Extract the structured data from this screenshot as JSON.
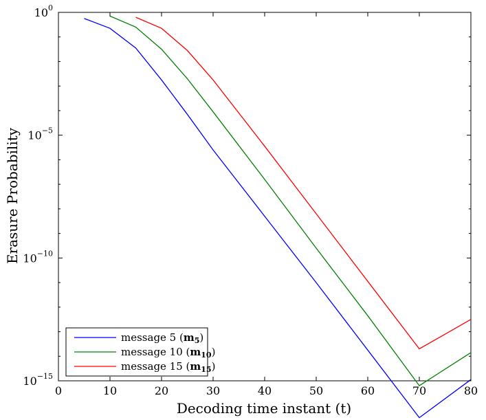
{
  "chart_data": {
    "type": "line",
    "xlabel": "Decoding time instant (t)",
    "ylabel": "Erasure Probability",
    "xlim": [
      0,
      80
    ],
    "ylim_exponent": [
      -15,
      0
    ],
    "yscale": "log",
    "xticks": [
      "0",
      "10",
      "20",
      "30",
      "40",
      "50",
      "60",
      "70",
      "80"
    ],
    "yticks": [
      {
        "base": "10",
        "exp": "0"
      },
      {
        "base": "10",
        "exp": "−5"
      },
      {
        "base": "10",
        "exp": "−10"
      },
      {
        "base": "10",
        "exp": "−15"
      }
    ],
    "legend_position": "bottom-left",
    "series": [
      {
        "name": "message 5 (m5)",
        "legend_prefix": "message 5 (",
        "legend_bold": "m",
        "legend_sub": "5",
        "legend_suffix": ")",
        "color": "#0000ff",
        "points": [
          [
            5,
            -0.25
          ],
          [
            10,
            -0.65
          ],
          [
            15,
            -1.45
          ],
          [
            20,
            -2.75
          ],
          [
            25,
            -4.15
          ],
          [
            30,
            -5.6
          ],
          [
            40,
            -8.3
          ],
          [
            50,
            -11.0
          ],
          [
            60,
            -13.75
          ],
          [
            70,
            -16.5
          ],
          [
            80,
            -14.95
          ]
        ]
      },
      {
        "name": "message 10 (m10)",
        "legend_prefix": "message 10 (",
        "legend_bold": "m",
        "legend_sub": "10",
        "legend_suffix": ")",
        "color": "#008000",
        "points": [
          [
            10,
            -0.15
          ],
          [
            15,
            -0.6
          ],
          [
            20,
            -1.5
          ],
          [
            25,
            -2.7
          ],
          [
            30,
            -4.05
          ],
          [
            40,
            -6.8
          ],
          [
            50,
            -9.6
          ],
          [
            60,
            -12.35
          ],
          [
            70,
            -15.2
          ],
          [
            80,
            -13.85
          ]
        ]
      },
      {
        "name": "message 15 (m15)",
        "legend_prefix": "message 15 (",
        "legend_bold": "m",
        "legend_sub": "15",
        "legend_suffix": ")",
        "color": "#ff0000",
        "points": [
          [
            15,
            -0.2
          ],
          [
            20,
            -0.65
          ],
          [
            25,
            -1.55
          ],
          [
            30,
            -2.75
          ],
          [
            40,
            -5.45
          ],
          [
            50,
            -8.2
          ],
          [
            60,
            -10.95
          ],
          [
            70,
            -13.7
          ],
          [
            80,
            -12.5
          ]
        ]
      }
    ]
  }
}
